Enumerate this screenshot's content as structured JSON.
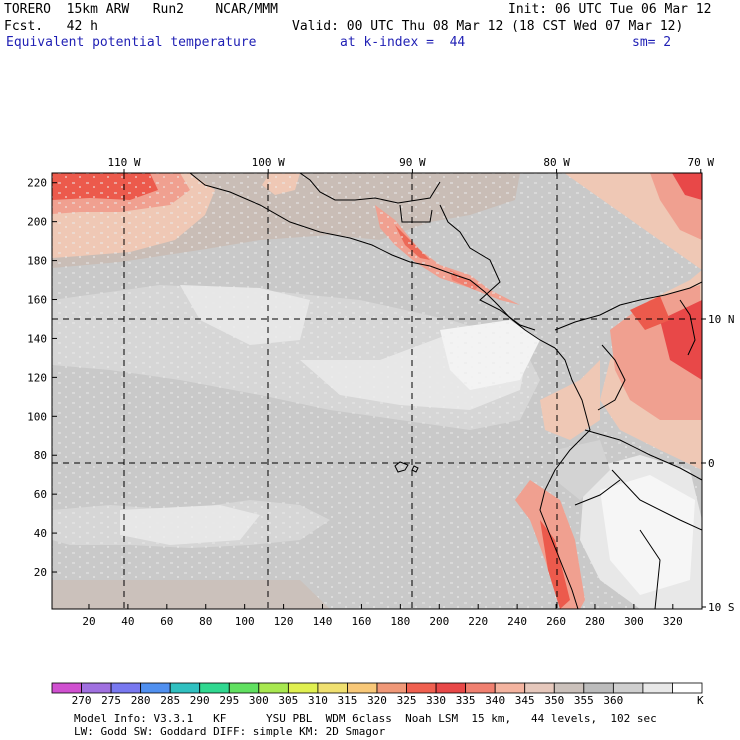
{
  "header": {
    "model": "TORERO  15km ARW   Run2    NCAR/MMM",
    "init": "Init: 06 UTC Tue 06 Mar 12",
    "fcst": "Fcst.   42 h",
    "valid": "Valid: 00 UTC Thu 08 Mar 12 (18 CST Wed 07 Mar 12)",
    "field": "Equivalent potential temperature",
    "level": "at k-index =  44",
    "smooth": "sm= 2"
  },
  "map": {
    "lon_labels": [
      {
        "text": "110 W",
        "lon": -110
      },
      {
        "text": "100 W",
        "lon": -100
      },
      {
        "text": "90 W",
        "lon": -90
      },
      {
        "text": "80 W",
        "lon": -80
      },
      {
        "text": "70 W",
        "lon": -70
      }
    ],
    "lat_labels": [
      {
        "text": "10 N",
        "lat": 10
      },
      {
        "text": "0",
        "lat": 0
      },
      {
        "text": "10 S",
        "lat": -10
      }
    ],
    "y_ticks": [
      20,
      40,
      60,
      80,
      100,
      120,
      140,
      160,
      180,
      200,
      220
    ],
    "x_ticks": [
      20,
      40,
      60,
      80,
      100,
      120,
      140,
      160,
      180,
      200,
      220,
      240,
      260,
      280,
      300,
      320
    ],
    "x_range": [
      1,
      335
    ],
    "y_range": [
      1,
      225
    ]
  },
  "colorbar": {
    "colors": [
      "#d050d0",
      "#a070e0",
      "#7878f0",
      "#5090f0",
      "#30c0c0",
      "#30d890",
      "#60e060",
      "#a8e850",
      "#e0f050",
      "#f0e070",
      "#f8c878",
      "#f09878",
      "#f06050",
      "#e84848",
      "#f08070",
      "#f4b4a0",
      "#e6c8bc",
      "#cbc1bb",
      "#bcbcbc",
      "#cfcfcf",
      "#e8e8e8",
      "#ffffff"
    ],
    "labels": [
      "270",
      "275",
      "280",
      "285",
      "290",
      "295",
      "300",
      "305",
      "310",
      "315",
      "320",
      "325",
      "330",
      "335",
      "340",
      "345",
      "350",
      "355",
      "360"
    ],
    "unit": "K"
  },
  "footer": {
    "line1": "Model Info: V3.3.1   KF      YSU PBL  WDM 6class  Noah LSM  15 km,   44 levels,  102 sec",
    "line2": "LW: Godd SW: Goddard DIFF: simple KM: 2D Smagor"
  }
}
